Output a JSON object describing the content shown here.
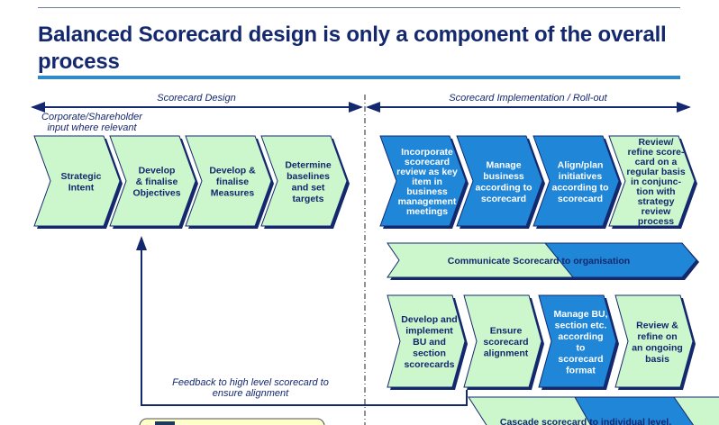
{
  "title": "Balanced Scorecard design is only a component of the overall process",
  "colors": {
    "navy": "#14286e",
    "blue": "#1f86d8",
    "light_green": "#ccf7cc",
    "accent_bar": "#2e8bc8"
  },
  "phases": {
    "design": "Scorecard Design",
    "implementation": "Scorecard Implementation / Roll-out"
  },
  "corporate_note": [
    "Corporate/Shareholder",
    "input where relevant"
  ],
  "design_steps": [
    {
      "lines": [
        "Strategic",
        "Intent"
      ],
      "style": "green"
    },
    {
      "lines": [
        "Develop",
        "& finalise",
        "Objectives"
      ],
      "style": "green"
    },
    {
      "lines": [
        "Develop &",
        "finalise",
        "Measures"
      ],
      "style": "green"
    },
    {
      "lines": [
        "Determine",
        "baselines",
        "and set",
        "targets"
      ],
      "style": "green"
    }
  ],
  "implementation_steps": [
    {
      "lines": [
        "Incorporate",
        "scorecard",
        "review as key",
        "item in",
        "business",
        "management",
        "meetings"
      ],
      "style": "blue"
    },
    {
      "lines": [
        "Manage",
        "business",
        "according to",
        "scorecard"
      ],
      "style": "blue"
    },
    {
      "lines": [
        "Align/plan",
        "initiatives",
        "according to",
        "scorecard"
      ],
      "style": "blue"
    },
    {
      "lines": [
        "Review/",
        "refine score-",
        "card on a",
        "regular basis",
        "in conjunc-",
        "tion with",
        "strategy",
        "review",
        "process"
      ],
      "style": "green"
    }
  ],
  "communicate_band": "Communicate Scorecard to organisation",
  "bu_steps": [
    {
      "lines": [
        "Develop and",
        "implement",
        "BU and",
        "section",
        "scorecards"
      ],
      "style": "green"
    },
    {
      "lines": [
        "Ensure",
        "scorecard",
        "alignment"
      ],
      "style": "green"
    },
    {
      "lines": [
        "Manage BU,",
        "section etc.",
        "according",
        "to",
        "scorecard",
        "format"
      ],
      "style": "blue"
    },
    {
      "lines": [
        "Review &",
        "refine on",
        "an ongoing",
        "basis"
      ],
      "style": "green"
    }
  ],
  "feedback_note": [
    "Feedback to high level scorecard to",
    "ensure alignment"
  ],
  "cascade_band": "Cascade scorecard to individual level."
}
